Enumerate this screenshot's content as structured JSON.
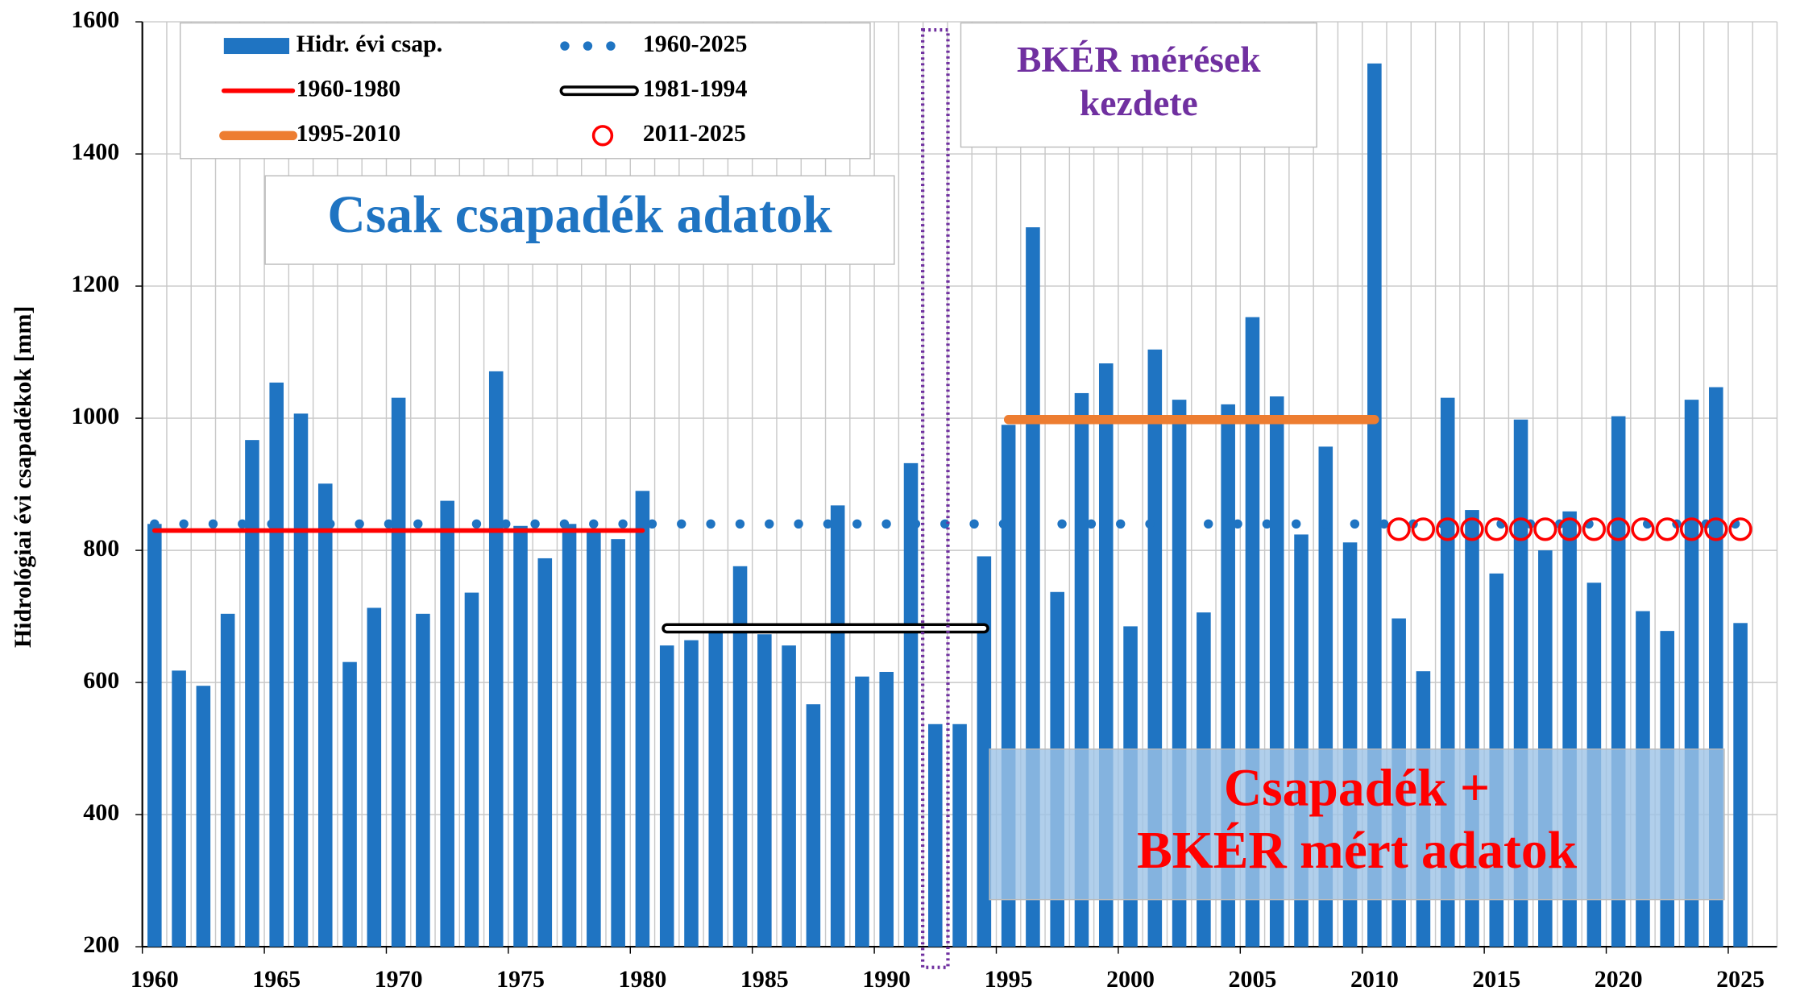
{
  "chart_data": {
    "type": "bar",
    "y_label": "Hidrológiai évi csapadékok  [mm]",
    "xlim": [
      1959.5,
      2026.5
    ],
    "xticks": [
      1960,
      1965,
      1970,
      1975,
      1980,
      1985,
      1990,
      1995,
      2000,
      2005,
      2010,
      2015,
      2020,
      2025
    ],
    "ylim": [
      200,
      1600
    ],
    "yticks": [
      200,
      400,
      600,
      800,
      1000,
      1200,
      1400,
      1600
    ],
    "grid": true,
    "highlight": 1992,
    "series": [
      {
        "name": "Hidr. évi csap.",
        "kind": "bar",
        "color": "#1f74c2",
        "x": [
          1960,
          1961,
          1962,
          1963,
          1964,
          1965,
          1966,
          1967,
          1968,
          1969,
          1970,
          1971,
          1972,
          1973,
          1974,
          1975,
          1976,
          1977,
          1978,
          1979,
          1980,
          1981,
          1982,
          1983,
          1984,
          1985,
          1986,
          1987,
          1988,
          1989,
          1990,
          1991,
          1992,
          1993,
          1994,
          1995,
          1996,
          1997,
          1998,
          1999,
          2000,
          2001,
          2002,
          2003,
          2004,
          2005,
          2006,
          2007,
          2008,
          2009,
          2010,
          2011,
          2012,
          2013,
          2014,
          2015,
          2016,
          2017,
          2018,
          2019,
          2020,
          2021,
          2022,
          2023,
          2024,
          2025
        ],
        "values": [
          840,
          618,
          595,
          704,
          967,
          1054,
          1007,
          901,
          631,
          713,
          1031,
          704,
          875,
          736,
          1071,
          837,
          788,
          840,
          830,
          817,
          890,
          656,
          664,
          685,
          776,
          673,
          656,
          567,
          868,
          609,
          616,
          932,
          537,
          537,
          791,
          990,
          1289,
          737,
          1038,
          1083,
          685,
          1104,
          1028,
          706,
          1021,
          1153,
          1033,
          824,
          957,
          812,
          1537,
          697,
          617,
          1031,
          861,
          765,
          998,
          800,
          859,
          751,
          1003,
          708,
          678,
          1028,
          1047,
          690
        ]
      },
      {
        "name": "1960-2025",
        "kind": "dotted",
        "color": "#1f74c2",
        "x": [
          1960,
          2025
        ],
        "values": [
          840,
          840
        ]
      },
      {
        "name": "1960-1980",
        "kind": "solid",
        "color": "#ff0000",
        "x": [
          1960,
          1980
        ],
        "values": [
          830,
          830
        ]
      },
      {
        "name": "1981-1994",
        "kind": "hollow",
        "color": "#000000",
        "x": [
          1981,
          1994
        ],
        "values": [
          682,
          682
        ]
      },
      {
        "name": "1995-2010",
        "kind": "thick",
        "color": "#ed7d31",
        "x": [
          1995,
          2010
        ],
        "values": [
          998,
          998
        ]
      },
      {
        "name": "2011-2025",
        "kind": "circles",
        "color": "#ff0000",
        "x": [
          2011,
          2012,
          2013,
          2014,
          2015,
          2016,
          2017,
          2018,
          2019,
          2020,
          2021,
          2022,
          2023,
          2024,
          2025
        ],
        "values": [
          832,
          832,
          832,
          832,
          832,
          832,
          832,
          832,
          832,
          832,
          832,
          832,
          832,
          832,
          832
        ]
      }
    ],
    "annotations": [
      {
        "lines": [
          "Csak csapadék adatok"
        ],
        "color": "#1f74c2"
      },
      {
        "lines": [
          "BKÉR mérések",
          "kezdete"
        ],
        "color": "#7030a0"
      },
      {
        "lines": [
          "Csapadék +",
          "BKÉR mért adatok"
        ],
        "color": "#ff0000"
      }
    ]
  }
}
